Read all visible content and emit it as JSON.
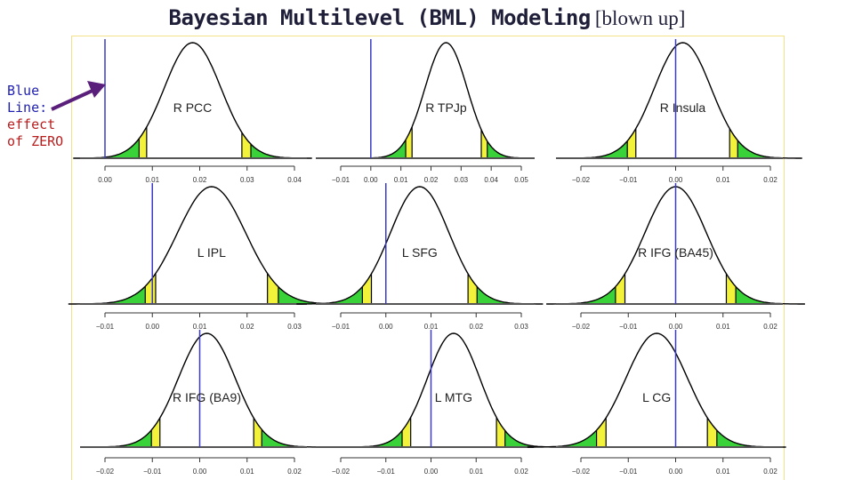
{
  "title": {
    "main": "Bayesian Multilevel (BML) Modeling",
    "suffix": "[blown up]"
  },
  "annotation": {
    "line1": "Blue",
    "line2": "Line:",
    "line3": "effect",
    "line4": "of ZERO"
  },
  "colors": {
    "curve": "#000000",
    "zero_line": "#3b3bc7",
    "tail_outer": "#39d339",
    "tail_inner": "#f2f23a",
    "arrow": "#5a1f7a",
    "frame": "#f3e28a"
  },
  "chart_data": [
    {
      "type": "area",
      "label": "R PCC",
      "mean": 0.0185,
      "sd": 0.006,
      "ci90": [
        0.0088,
        0.0289
      ],
      "ci95": [
        0.0072,
        0.0308
      ],
      "xlim": [
        0.0,
        0.04
      ],
      "ticks": [
        "0.00",
        "0.01",
        "0.02",
        "0.03",
        "0.04"
      ],
      "tick_values": [
        0.0,
        0.01,
        0.02,
        0.03,
        0.04
      ],
      "zero": 0.0
    },
    {
      "type": "area",
      "label": "R TPJp",
      "mean": 0.025,
      "sd": 0.007,
      "ci90": [
        0.0137,
        0.0367
      ],
      "ci95": [
        0.0116,
        0.0387
      ],
      "xlim": [
        -0.01,
        0.05
      ],
      "ticks": [
        "−0.01",
        "0.00",
        "0.01",
        "0.02",
        "0.03",
        "0.04",
        "0.05"
      ],
      "tick_values": [
        -0.01,
        0.0,
        0.01,
        0.02,
        0.03,
        0.04,
        0.05
      ],
      "zero": 0.0
    },
    {
      "type": "area",
      "label": "R Insula",
      "mean": 0.0015,
      "sd": 0.006,
      "ci90": [
        -0.0084,
        0.0114
      ],
      "ci95": [
        -0.0102,
        0.0131
      ],
      "xlim": [
        -0.02,
        0.02
      ],
      "ticks": [
        "−0.02",
        "−0.01",
        "0.00",
        "0.01",
        "0.02"
      ],
      "tick_values": [
        -0.02,
        -0.01,
        0.0,
        0.01,
        0.02
      ],
      "zero": 0.0
    },
    {
      "type": "area",
      "label": "L IPL",
      "mean": 0.0125,
      "sd": 0.0072,
      "ci90": [
        0.0007,
        0.0243
      ],
      "ci95": [
        -0.0015,
        0.0266
      ],
      "xlim": [
        -0.01,
        0.03
      ],
      "ticks": [
        "−0.01",
        "0.00",
        "0.01",
        "0.02",
        "0.03"
      ],
      "tick_values": [
        -0.01,
        0.0,
        0.01,
        0.02,
        0.03
      ],
      "zero": 0.0
    },
    {
      "type": "area",
      "label": "L SFG",
      "mean": 0.0075,
      "sd": 0.0065,
      "ci90": [
        -0.0032,
        0.0182
      ],
      "ci95": [
        -0.0052,
        0.0202
      ],
      "xlim": [
        -0.01,
        0.03
      ],
      "ticks": [
        "−0.01",
        "0.00",
        "0.01",
        "0.02",
        "0.03"
      ],
      "tick_values": [
        -0.01,
        0.0,
        0.01,
        0.02,
        0.03
      ],
      "zero": 0.0
    },
    {
      "type": "area",
      "label": "R IFG (BA45)",
      "mean": 0.0,
      "sd": 0.0065,
      "ci90": [
        -0.0107,
        0.0107
      ],
      "ci95": [
        -0.0127,
        0.0127
      ],
      "xlim": [
        -0.02,
        0.02
      ],
      "ticks": [
        "−0.02",
        "−0.01",
        "0.00",
        "0.01",
        "0.02"
      ],
      "tick_values": [
        -0.02,
        -0.01,
        0.0,
        0.01,
        0.02
      ],
      "zero": 0.0
    },
    {
      "type": "area",
      "label": "R IFG (BA9)",
      "mean": 0.0015,
      "sd": 0.006,
      "ci90": [
        -0.0084,
        0.0114
      ],
      "ci95": [
        -0.0102,
        0.0131
      ],
      "xlim": [
        -0.02,
        0.02
      ],
      "ticks": [
        "−0.02",
        "−0.01",
        "0.00",
        "0.01",
        "0.02"
      ],
      "tick_values": [
        -0.02,
        -0.01,
        0.0,
        0.01,
        0.02
      ],
      "zero": 0.0
    },
    {
      "type": "area",
      "label": "L MTG",
      "mean": 0.005,
      "sd": 0.0058,
      "ci90": [
        -0.0045,
        0.0145
      ],
      "ci95": [
        -0.0064,
        0.0164
      ],
      "xlim": [
        -0.02,
        0.02
      ],
      "ticks": [
        "−0.02",
        "−0.01",
        "0.00",
        "0.01",
        "0.02"
      ],
      "tick_values": [
        -0.02,
        -0.01,
        0.0,
        0.01,
        0.02
      ],
      "zero": 0.0
    },
    {
      "type": "area",
      "label": "L CG",
      "mean": -0.004,
      "sd": 0.0065,
      "ci90": [
        -0.0147,
        0.0067
      ],
      "ci95": [
        -0.0167,
        0.0087
      ],
      "xlim": [
        -0.02,
        0.02
      ],
      "ticks": [
        "−0.02",
        "−0.01",
        "0.00",
        "0.01",
        "0.02"
      ],
      "tick_values": [
        -0.02,
        -0.01,
        0.0,
        0.01,
        0.02
      ],
      "zero": 0.0
    }
  ]
}
